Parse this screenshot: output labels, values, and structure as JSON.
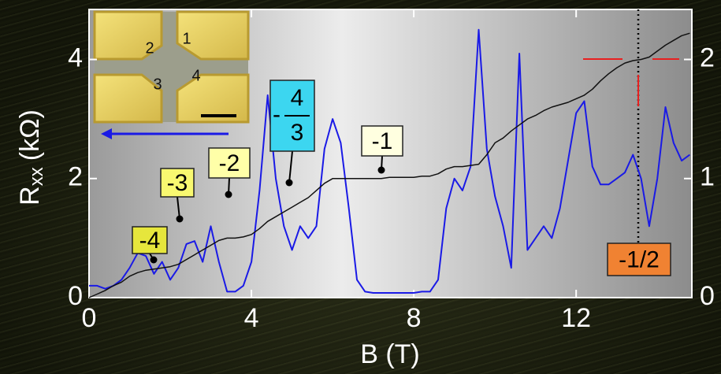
{
  "chart_data": {
    "type": "line",
    "xlabel": "B (T)",
    "ylabel": "R",
    "ylabel_sub": "xx",
    "ylabel_unit": "(kΩ)",
    "x": [
      0,
      0.2,
      0.4,
      0.6,
      0.8,
      1.0,
      1.2,
      1.4,
      1.6,
      1.8,
      2.0,
      2.2,
      2.4,
      2.6,
      2.8,
      3.0,
      3.2,
      3.4,
      3.6,
      3.8,
      4.0,
      4.2,
      4.4,
      4.6,
      4.8,
      5.0,
      5.2,
      5.4,
      5.6,
      5.8,
      6.0,
      6.2,
      6.4,
      6.6,
      6.8,
      7.0,
      7.2,
      7.4,
      7.6,
      7.8,
      8.0,
      8.2,
      8.4,
      8.6,
      8.8,
      9.0,
      9.2,
      9.4,
      9.6,
      9.8,
      10.0,
      10.2,
      10.4,
      10.6,
      10.8,
      11.0,
      11.2,
      11.4,
      11.6,
      11.8,
      12.0,
      12.2,
      12.4,
      12.6,
      12.8,
      13.0,
      13.2,
      13.4,
      13.6,
      13.8,
      14.0,
      14.2,
      14.4,
      14.6,
      14.8
    ],
    "series": [
      {
        "color": "#1a1ae6",
        "axis": "y",
        "values": [
          0.2,
          0.2,
          0.15,
          0.2,
          0.3,
          0.5,
          0.75,
          0.7,
          0.4,
          0.6,
          0.3,
          0.5,
          0.9,
          0.95,
          0.6,
          1.2,
          0.6,
          0.1,
          0.1,
          0.2,
          0.6,
          1.8,
          3.4,
          2.0,
          1.2,
          0.8,
          1.2,
          1.0,
          1.2,
          2.5,
          3.0,
          2.6,
          1.5,
          0.3,
          0.1,
          0.08,
          0.08,
          0.08,
          0.08,
          0.08,
          0.08,
          0.1,
          0.1,
          0.3,
          1.5,
          2.0,
          1.8,
          2.2,
          4.5,
          2.5,
          1.7,
          1.2,
          0.5,
          4.1,
          0.8,
          1.0,
          1.2,
          1.0,
          1.5,
          2.3,
          3.1,
          3.3,
          2.2,
          1.9,
          1.9,
          2.0,
          2.1,
          2.4,
          2.0,
          1.2,
          2.0,
          3.2,
          2.6,
          2.3,
          2.4
        ]
      },
      {
        "color": "#111111",
        "axis": "y2",
        "values": [
          0,
          0.03,
          0.06,
          0.1,
          0.13,
          0.18,
          0.21,
          0.23,
          0.24,
          0.25,
          0.26,
          0.28,
          0.32,
          0.36,
          0.4,
          0.44,
          0.48,
          0.5,
          0.5,
          0.51,
          0.53,
          0.58,
          0.64,
          0.68,
          0.72,
          0.76,
          0.8,
          0.84,
          0.9,
          0.96,
          1.0,
          1.0,
          1.0,
          1.0,
          1.0,
          1.0,
          1.0,
          1.01,
          1.01,
          1.01,
          1.01,
          1.02,
          1.02,
          1.04,
          1.08,
          1.1,
          1.1,
          1.11,
          1.12,
          1.2,
          1.3,
          1.34,
          1.4,
          1.45,
          1.5,
          1.53,
          1.57,
          1.6,
          1.62,
          1.64,
          1.67,
          1.7,
          1.75,
          1.82,
          1.88,
          1.93,
          1.97,
          1.99,
          2.0,
          2.02,
          2.07,
          2.12,
          2.16,
          2.2,
          2.22
        ]
      }
    ],
    "xlim": [
      0,
      14.85
    ],
    "xticks": [
      0,
      4,
      8,
      12
    ],
    "ylim": [
      0,
      4.84
    ],
    "yticks": [
      0,
      2,
      4
    ],
    "y2lim": [
      0,
      2.42
    ],
    "y2ticks": [
      0,
      1,
      2
    ],
    "annotations": [
      {
        "text": "-4"
      },
      {
        "text": "-3"
      },
      {
        "text": "-2"
      },
      {
        "sign": "-",
        "numerator": "4",
        "denominator": "3"
      },
      {
        "text": "-1"
      },
      {
        "text": "-1/2"
      }
    ],
    "inset_labels": [
      "2",
      "1",
      "3",
      "4"
    ]
  }
}
